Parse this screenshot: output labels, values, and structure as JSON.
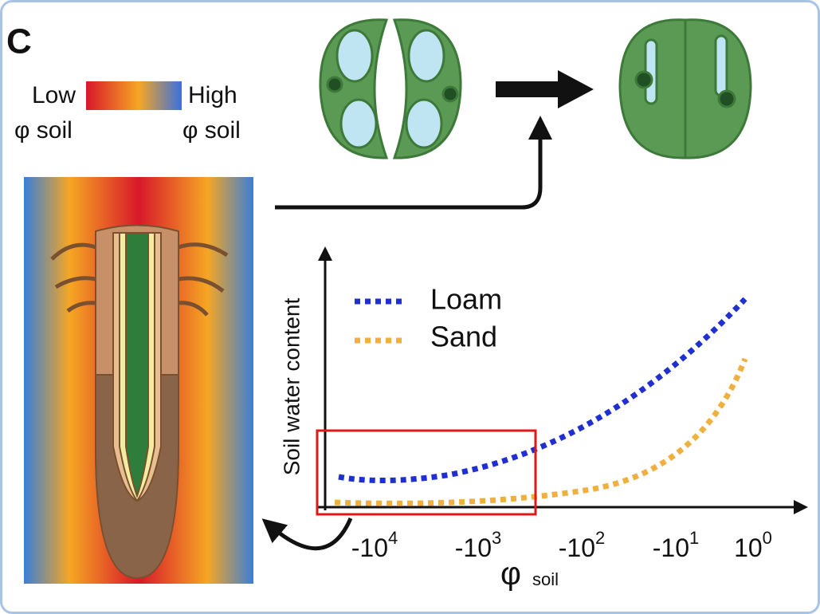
{
  "panel_label": "C",
  "color_legend": {
    "low": "Low",
    "high": "High",
    "low_sub": "φ soil",
    "high_sub": "φ soil"
  },
  "graph": {
    "y_label": "Soil water content",
    "x_label": {
      "symbol": "φ",
      "sub": "soil"
    },
    "x_ticks": [
      {
        "base": "-10",
        "exp": "4"
      },
      {
        "base": "-10",
        "exp": "3"
      },
      {
        "base": "-10",
        "exp": "2"
      },
      {
        "base": "-10",
        "exp": "1"
      },
      {
        "base": "10",
        "exp": "0"
      }
    ],
    "legend": [
      {
        "name": "Loam",
        "color": "#1f2fd0"
      },
      {
        "name": "Sand",
        "color": "#f0b040"
      }
    ]
  }
}
